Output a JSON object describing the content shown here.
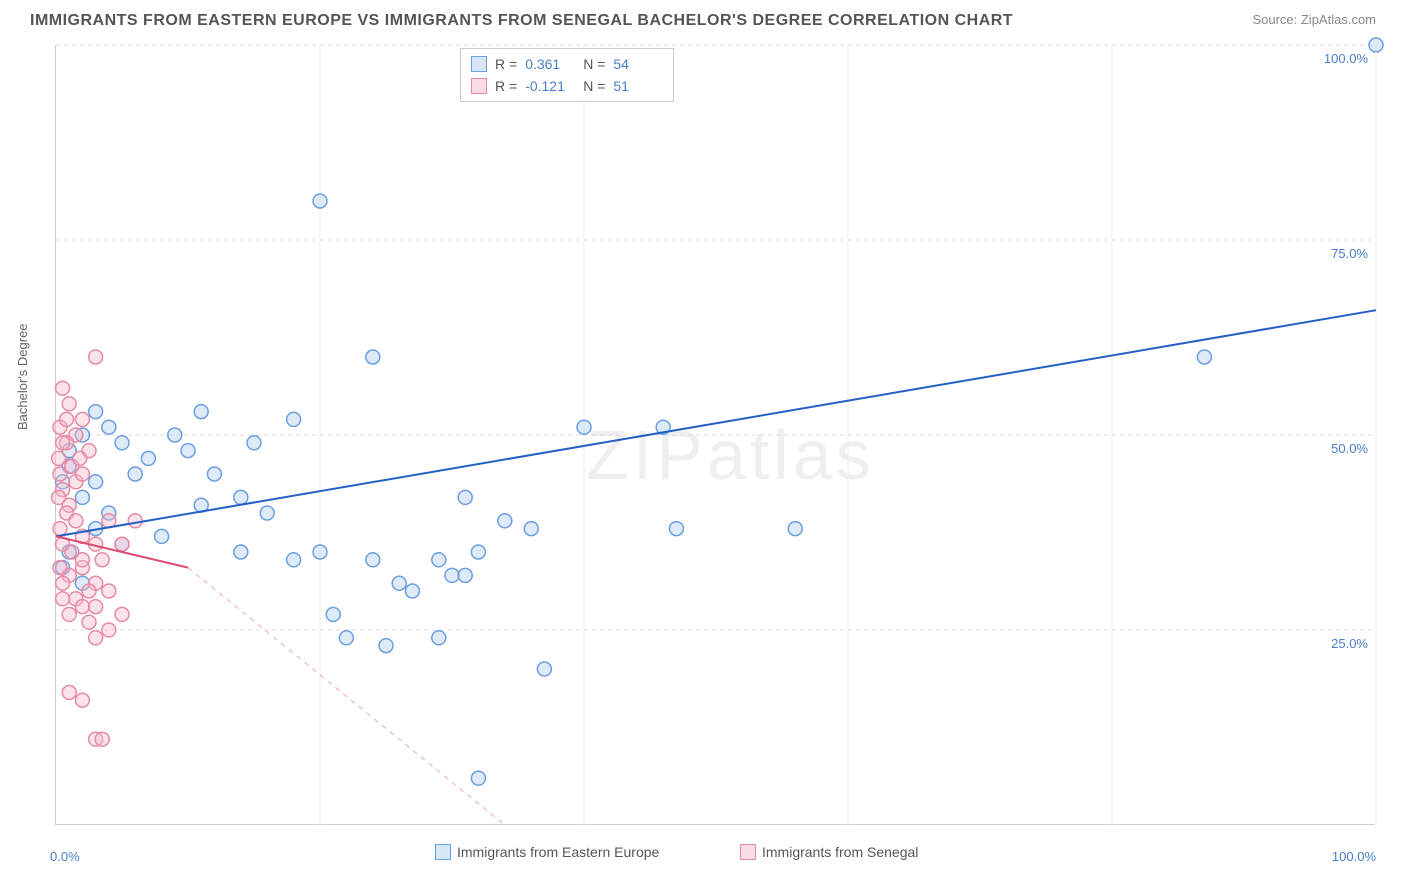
{
  "title": "IMMIGRANTS FROM EASTERN EUROPE VS IMMIGRANTS FROM SENEGAL BACHELOR'S DEGREE CORRELATION CHART",
  "source": "Source: ZipAtlas.com",
  "watermark": "ZIPatlas",
  "ylabel": "Bachelor's Degree",
  "chart": {
    "type": "scatter",
    "xlim": [
      0,
      100
    ],
    "ylim": [
      0,
      100
    ],
    "xtick_labels": {
      "min": "0.0%",
      "max": "100.0%"
    },
    "ytick_positions": [
      25,
      50,
      75,
      100
    ],
    "ytick_labels": [
      "25.0%",
      "50.0%",
      "75.0%",
      "100.0%"
    ],
    "grid_v_positions": [
      20,
      40,
      60,
      80,
      100
    ],
    "grid_color": "#dddddd",
    "background_color": "#ffffff",
    "marker_radius": 7,
    "marker_stroke_width": 1.5,
    "marker_fill_opacity": 0.15,
    "trend_line_width": 2
  },
  "legend_top": {
    "r_label": "R =",
    "n_label": "N =",
    "rows": [
      {
        "r": "0.361",
        "n": "54",
        "swatch_fill": "#d6e5f7",
        "swatch_stroke": "#6b9fe0"
      },
      {
        "r": "-0.121",
        "n": "51",
        "swatch_fill": "#fadce3",
        "swatch_stroke": "#e78aa3"
      }
    ]
  },
  "legend_bottom": {
    "items": [
      {
        "label": "Immigrants from Eastern Europe",
        "swatch_fill": "#d6e5f7",
        "swatch_stroke": "#6b9fe0"
      },
      {
        "label": "Immigrants from Senegal",
        "swatch_fill": "#fadce3",
        "swatch_stroke": "#e78aa3"
      }
    ]
  },
  "series": [
    {
      "name": "eastern_europe",
      "color_stroke": "#6b9fe0",
      "color_fill": "#aecbef",
      "trend_color": "#2360c4",
      "trend_style": "solid",
      "trend": {
        "x1": 0,
        "y1": 37,
        "x2": 100,
        "y2": 66
      },
      "points": [
        [
          100,
          100
        ],
        [
          87,
          60
        ],
        [
          20,
          80
        ],
        [
          46,
          51
        ],
        [
          40,
          51
        ],
        [
          47,
          38
        ],
        [
          36,
          38
        ],
        [
          24,
          60
        ],
        [
          18,
          52
        ],
        [
          11,
          53
        ],
        [
          9,
          50
        ],
        [
          15,
          49
        ],
        [
          3,
          53
        ],
        [
          4,
          51
        ],
        [
          5,
          49
        ],
        [
          2,
          50
        ],
        [
          1,
          48
        ],
        [
          7,
          47
        ],
        [
          10,
          48
        ],
        [
          6,
          45
        ],
        [
          12,
          45
        ],
        [
          14,
          42
        ],
        [
          31,
          42
        ],
        [
          34,
          39
        ],
        [
          32,
          35
        ],
        [
          29,
          34
        ],
        [
          30,
          32
        ],
        [
          31,
          32
        ],
        [
          24,
          34
        ],
        [
          20,
          35
        ],
        [
          18,
          34
        ],
        [
          14,
          35
        ],
        [
          11,
          41
        ],
        [
          16,
          40
        ],
        [
          3,
          44
        ],
        [
          2,
          42
        ],
        [
          4,
          40
        ],
        [
          1,
          46
        ],
        [
          0.5,
          44
        ],
        [
          26,
          31
        ],
        [
          27,
          30
        ],
        [
          29,
          24
        ],
        [
          25,
          23
        ],
        [
          22,
          24
        ],
        [
          21,
          27
        ],
        [
          37,
          20
        ],
        [
          32,
          6
        ],
        [
          56,
          38
        ],
        [
          3,
          38
        ],
        [
          5,
          36
        ],
        [
          8,
          37
        ],
        [
          1,
          35
        ],
        [
          0.5,
          33
        ],
        [
          2,
          31
        ]
      ]
    },
    {
      "name": "senegal",
      "color_stroke": "#e78aa3",
      "color_fill": "#f4b9c8",
      "trend_color": "#d94f72",
      "trend_style": "solid_then_dash",
      "trend_solid": {
        "x1": 0,
        "y1": 37,
        "x2": 10,
        "y2": 33
      },
      "trend_dash": {
        "x1": 10,
        "y1": 33,
        "x2": 34,
        "y2": 0
      },
      "points": [
        [
          3,
          60
        ],
        [
          0.5,
          56
        ],
        [
          1,
          54
        ],
        [
          2,
          52
        ],
        [
          0.3,
          51
        ],
        [
          1.5,
          50
        ],
        [
          0.8,
          49
        ],
        [
          2.5,
          48
        ],
        [
          0.2,
          47
        ],
        [
          1.2,
          46
        ],
        [
          0.5,
          49
        ],
        [
          0.8,
          52
        ],
        [
          1.8,
          47
        ],
        [
          0.3,
          45
        ],
        [
          1.5,
          44
        ],
        [
          0.5,
          43
        ],
        [
          2,
          45
        ],
        [
          0.2,
          42
        ],
        [
          1,
          41
        ],
        [
          0.8,
          40
        ],
        [
          1.5,
          39
        ],
        [
          0.3,
          38
        ],
        [
          2,
          37
        ],
        [
          0.5,
          36
        ],
        [
          1.2,
          35
        ],
        [
          3,
          36
        ],
        [
          4,
          39
        ],
        [
          5,
          36
        ],
        [
          6,
          39
        ],
        [
          3.5,
          34
        ],
        [
          2,
          33
        ],
        [
          1,
          32
        ],
        [
          3,
          31
        ],
        [
          2.5,
          30
        ],
        [
          4,
          30
        ],
        [
          1.5,
          29
        ],
        [
          0.5,
          29
        ],
        [
          2,
          28
        ],
        [
          3,
          28
        ],
        [
          1,
          27
        ],
        [
          5,
          27
        ],
        [
          2.5,
          26
        ],
        [
          3,
          24
        ],
        [
          4,
          25
        ],
        [
          1,
          17
        ],
        [
          2,
          16
        ],
        [
          3,
          11
        ],
        [
          3.5,
          11
        ],
        [
          0.5,
          31
        ],
        [
          0.3,
          33
        ],
        [
          2,
          34
        ]
      ]
    }
  ]
}
